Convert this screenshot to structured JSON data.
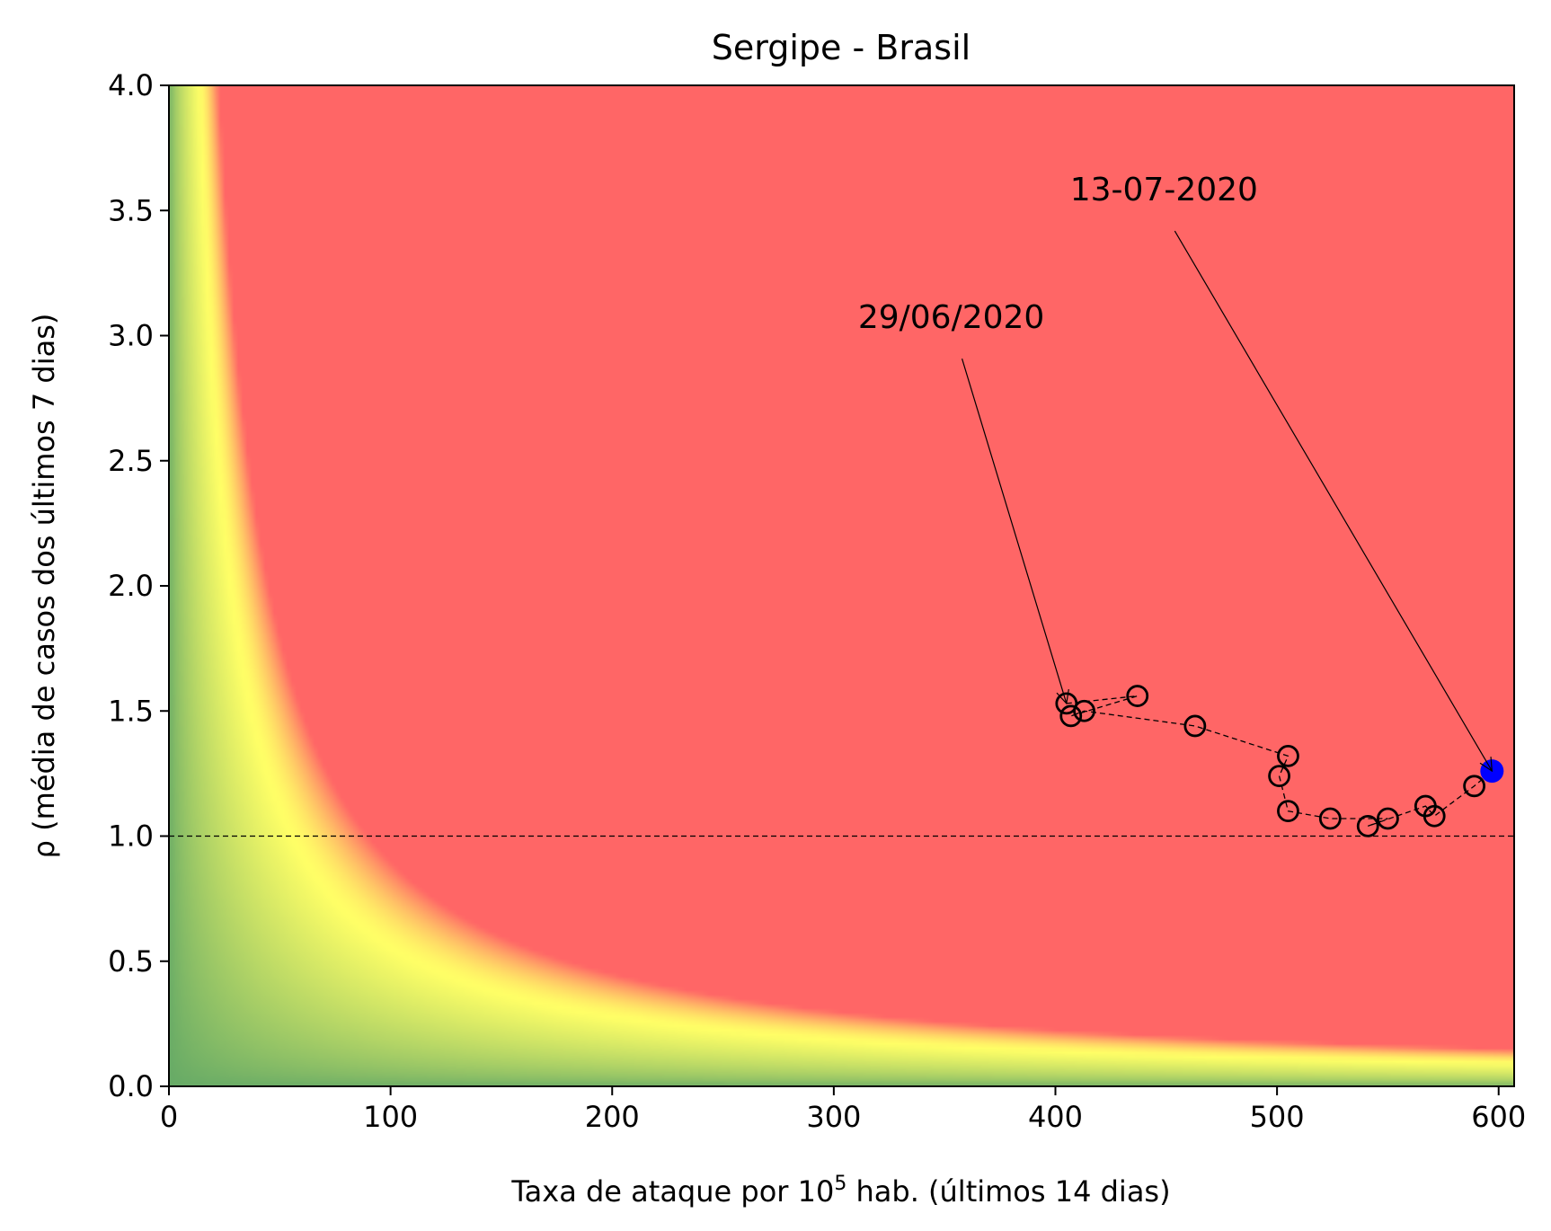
{
  "chart_data": {
    "type": "scatter",
    "title": "Sergipe - Brasil",
    "xlabel_prefix": "Taxa de ataque por 10",
    "xlabel_exp": "5",
    "xlabel_suffix": " hab. (últimos 14 dias)",
    "ylabel": "ρ (média de casos dos últimos 7 dias)",
    "xlim": [
      0,
      607
    ],
    "ylim": [
      0,
      4.0
    ],
    "xticks": [
      0,
      100,
      200,
      300,
      400,
      500,
      600
    ],
    "xtick_labels": [
      "0",
      "100",
      "200",
      "300",
      "400",
      "500",
      "600"
    ],
    "yticks": [
      0,
      0.5,
      1.0,
      1.5,
      2.0,
      2.5,
      3.0,
      3.5,
      4.0
    ],
    "ytick_labels": [
      "0.0",
      "0.5",
      "1.0",
      "1.5",
      "2.0",
      "2.5",
      "3.0",
      "3.5",
      "4.0"
    ],
    "grid": false,
    "reference_line_y": 1.0,
    "background": {
      "kind": "risk-gradient",
      "low_color": "#66aa66",
      "mid_color": "#ffff66",
      "high_color": "#ff6666"
    },
    "trajectory": {
      "x": [
        405,
        437,
        407,
        413,
        463,
        505,
        501,
        505,
        524,
        550,
        541,
        567,
        571,
        589,
        597
      ],
      "y": [
        1.53,
        1.56,
        1.48,
        1.5,
        1.44,
        1.32,
        1.24,
        1.1,
        1.07,
        1.07,
        1.04,
        1.12,
        1.08,
        1.2,
        1.26
      ],
      "marker_color": "#000000",
      "last_point_color": "#0000ff"
    },
    "annotations": [
      {
        "text": "29/06/2020",
        "text_x": 353,
        "text_y": 3.03,
        "arrow_to_x": 405,
        "arrow_to_y": 1.53
      },
      {
        "text": "13-07-2020",
        "text_x": 449,
        "text_y": 3.54,
        "arrow_to_x": 597,
        "arrow_to_y": 1.26
      }
    ]
  }
}
